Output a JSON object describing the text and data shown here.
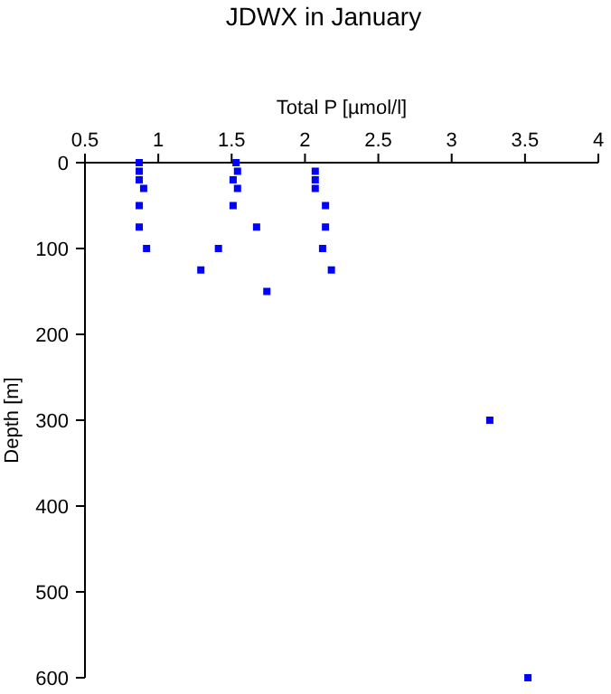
{
  "chart_data": {
    "type": "scatter",
    "title": "JDWX in January",
    "xlabel": "Total P [µmol/l]",
    "ylabel": "Depth [m]",
    "x": [
      0.87,
      0.87,
      0.87,
      0.9,
      0.87,
      0.87,
      0.92,
      1.53,
      1.54,
      1.51,
      1.54,
      1.51,
      1.67,
      1.41,
      1.29,
      1.74,
      2.07,
      2.07,
      2.07,
      2.14,
      2.14,
      2.12,
      2.18,
      3.26,
      3.52
    ],
    "series": [
      {
        "color": "#0000ff",
        "values": [
          0,
          10,
          20,
          30,
          50,
          75,
          100,
          0,
          10,
          20,
          30,
          50,
          75,
          100,
          125,
          150,
          10,
          20,
          30,
          50,
          75,
          100,
          125,
          300,
          600
        ]
      }
    ],
    "xlim": [
      0.5,
      4
    ],
    "xticks": [
      0.5,
      1,
      1.5,
      2,
      2.5,
      3,
      3.5,
      4
    ],
    "ylim": [
      600,
      0
    ],
    "yticks": [
      0,
      100,
      200,
      300,
      400,
      500,
      600
    ],
    "marker": "square",
    "grid": false
  }
}
